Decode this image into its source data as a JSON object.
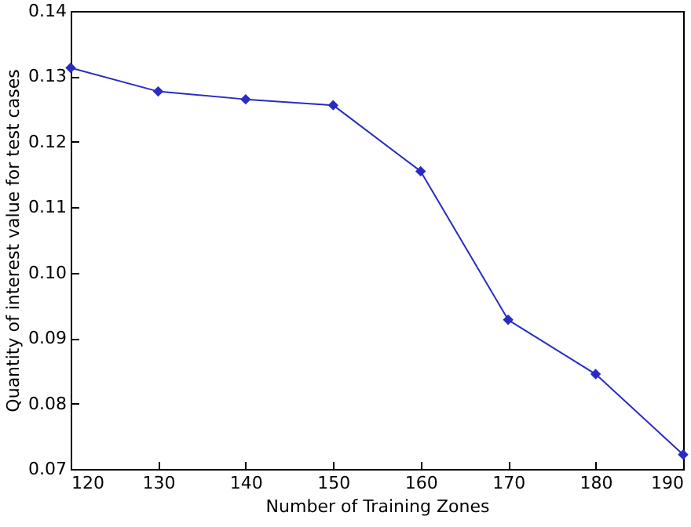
{
  "chart_data": {
    "type": "line",
    "xlabel": "Number of Training Zones",
    "ylabel": "Quantity of interest value for test cases",
    "x": [
      120,
      130,
      140,
      150,
      160,
      170,
      180,
      190
    ],
    "series": [
      {
        "color": "#2b2bc4",
        "values": [
          0.1313,
          0.1277,
          0.1265,
          0.1256,
          0.1155,
          0.0928,
          0.0845,
          0.0722
        ]
      }
    ],
    "xlim": [
      120,
      190
    ],
    "xticks": [
      120,
      130,
      140,
      150,
      160,
      170,
      180,
      190
    ],
    "ylim": [
      0.07,
      0.14
    ],
    "yticks": [
      0.07,
      0.08,
      0.09,
      {
        "value": 0.1,
        "label": "0.10"
      },
      0.11,
      0.12,
      0.13,
      0.14
    ],
    "marker": "diamond",
    "line_style": "solid",
    "grid": false
  }
}
